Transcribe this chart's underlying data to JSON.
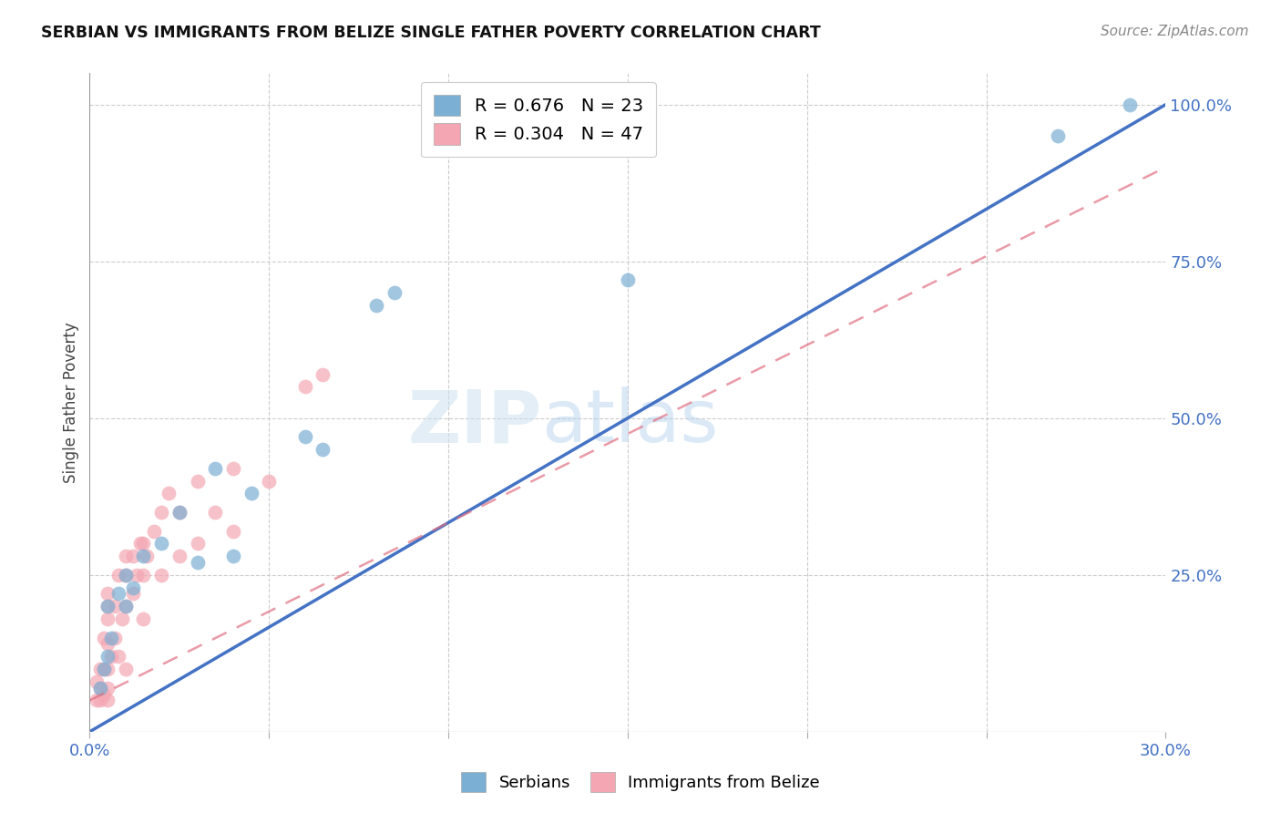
{
  "title": "SERBIAN VS IMMIGRANTS FROM BELIZE SINGLE FATHER POVERTY CORRELATION CHART",
  "source": "Source: ZipAtlas.com",
  "xlabel_color": "#4472c4",
  "ylabel": "Single Father Poverty",
  "xmin": 0.0,
  "xmax": 0.3,
  "ymin": 0.0,
  "ymax": 1.05,
  "x_ticks": [
    0.0,
    0.05,
    0.1,
    0.15,
    0.2,
    0.25,
    0.3
  ],
  "x_tick_labels": [
    "0.0%",
    "",
    "",
    "",
    "",
    "",
    "30.0%"
  ],
  "y_ticks": [
    0.0,
    0.25,
    0.5,
    0.75,
    1.0
  ],
  "y_tick_labels": [
    "",
    "25.0%",
    "50.0%",
    "75.0%",
    "100.0%"
  ],
  "serbian_R": 0.676,
  "serbian_N": 23,
  "belize_R": 0.304,
  "belize_N": 47,
  "serbian_color": "#7bafd4",
  "belize_color": "#f4a7b3",
  "serbian_line_color": "#4472c4",
  "belize_line_color": "#e07080",
  "watermark_zip": "ZIP",
  "watermark_atlas": "atlas",
  "serbian_line_x": [
    0.0,
    0.3
  ],
  "serbian_line_y": [
    0.0,
    1.0
  ],
  "belize_line_x": [
    0.0,
    0.3
  ],
  "belize_line_y": [
    0.05,
    0.9
  ],
  "serbian_scatter_x": [
    0.003,
    0.004,
    0.005,
    0.005,
    0.006,
    0.008,
    0.01,
    0.01,
    0.012,
    0.015,
    0.02,
    0.025,
    0.03,
    0.035,
    0.04,
    0.045,
    0.06,
    0.065,
    0.08,
    0.085,
    0.15,
    0.27,
    0.29
  ],
  "serbian_scatter_y": [
    0.07,
    0.1,
    0.12,
    0.2,
    0.15,
    0.22,
    0.2,
    0.25,
    0.23,
    0.28,
    0.3,
    0.35,
    0.27,
    0.42,
    0.28,
    0.38,
    0.47,
    0.45,
    0.68,
    0.7,
    0.72,
    0.95,
    1.0
  ],
  "belize_scatter_x": [
    0.002,
    0.002,
    0.003,
    0.003,
    0.003,
    0.004,
    0.004,
    0.004,
    0.005,
    0.005,
    0.005,
    0.005,
    0.005,
    0.005,
    0.005,
    0.006,
    0.007,
    0.007,
    0.008,
    0.008,
    0.009,
    0.01,
    0.01,
    0.01,
    0.01,
    0.012,
    0.012,
    0.013,
    0.014,
    0.015,
    0.015,
    0.015,
    0.016,
    0.018,
    0.02,
    0.02,
    0.022,
    0.025,
    0.025,
    0.03,
    0.03,
    0.035,
    0.04,
    0.04,
    0.05,
    0.06,
    0.065
  ],
  "belize_scatter_y": [
    0.05,
    0.08,
    0.05,
    0.07,
    0.1,
    0.06,
    0.1,
    0.15,
    0.05,
    0.07,
    0.1,
    0.14,
    0.18,
    0.2,
    0.22,
    0.12,
    0.15,
    0.2,
    0.12,
    0.25,
    0.18,
    0.1,
    0.2,
    0.25,
    0.28,
    0.22,
    0.28,
    0.25,
    0.3,
    0.18,
    0.25,
    0.3,
    0.28,
    0.32,
    0.25,
    0.35,
    0.38,
    0.28,
    0.35,
    0.3,
    0.4,
    0.35,
    0.32,
    0.42,
    0.4,
    0.55,
    0.57
  ]
}
